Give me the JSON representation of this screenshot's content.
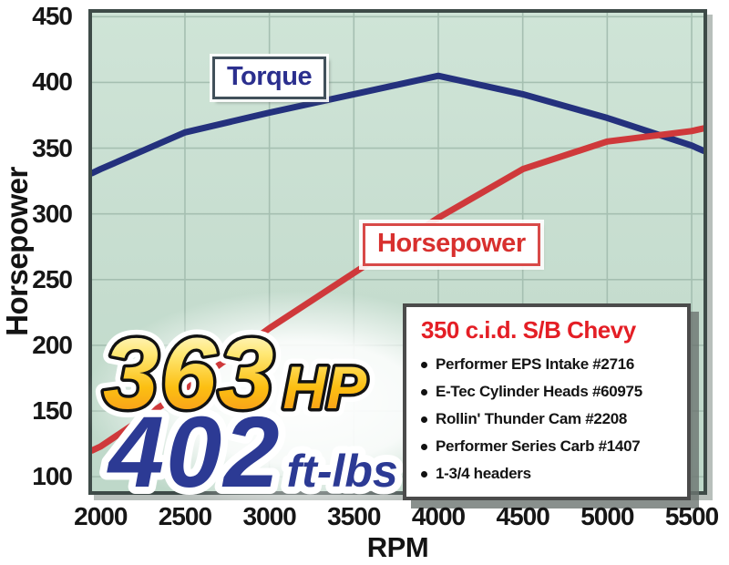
{
  "labels": {
    "torque": "Torque",
    "horsepower": "Horsepower"
  },
  "peaks": {
    "hp_value": "363",
    "hp_unit": "HP",
    "tq_value": "402",
    "tq_unit": "ft-lbs"
  },
  "spec_box": {
    "title": "350 c.i.d. S/B Chevy",
    "items": [
      "Performer EPS Intake #2716",
      "E-Tec Cylinder Heads #60975",
      "Rollin' Thunder Cam #2208",
      "Performer Series Carb #1407",
      "1-3/4 headers"
    ]
  },
  "colors": {
    "torque_line": "#24317d",
    "horsepower_line": "#cf393b",
    "spec_title_red": "#e41e25",
    "peak_tq_blue": "#2c3a94",
    "peak_hp_gradient": [
      "#fffef4",
      "#ffe875",
      "#fcbf12",
      "#f68b1f"
    ],
    "plot_bg_top": "#cfe4d7",
    "plot_bg_bottom": "#bed8c9",
    "grid": "#a5bfb1"
  },
  "chart_data": {
    "type": "line",
    "title": "",
    "xlabel": "RPM",
    "ylabel": "Horsepower",
    "grid": true,
    "legend_position": "inline-curve-labels",
    "x_ticks": [
      2000,
      2500,
      3000,
      3500,
      4000,
      4500,
      5000,
      5500
    ],
    "y_ticks": [
      100,
      150,
      200,
      250,
      300,
      350,
      400,
      450
    ],
    "x_range": [
      1950,
      5570
    ],
    "y_range": [
      89,
      453
    ],
    "series": [
      {
        "name": "Torque",
        "unit": "ft-lbs",
        "color": "#24317d",
        "x": [
          1950,
          2000,
          2500,
          3000,
          3500,
          4000,
          4500,
          5000,
          5500,
          5570
        ],
        "values": [
          331,
          334,
          362,
          377,
          391,
          405,
          391,
          373,
          352,
          348
        ],
        "peak": 402
      },
      {
        "name": "Horsepower",
        "unit": "hp",
        "color": "#cf393b",
        "x": [
          1950,
          2000,
          2500,
          3000,
          3500,
          4000,
          4500,
          5000,
          5500,
          5570
        ],
        "values": [
          120,
          123,
          166,
          213,
          255,
          297,
          334,
          355,
          363,
          365
        ],
        "peak": 363
      }
    ]
  }
}
